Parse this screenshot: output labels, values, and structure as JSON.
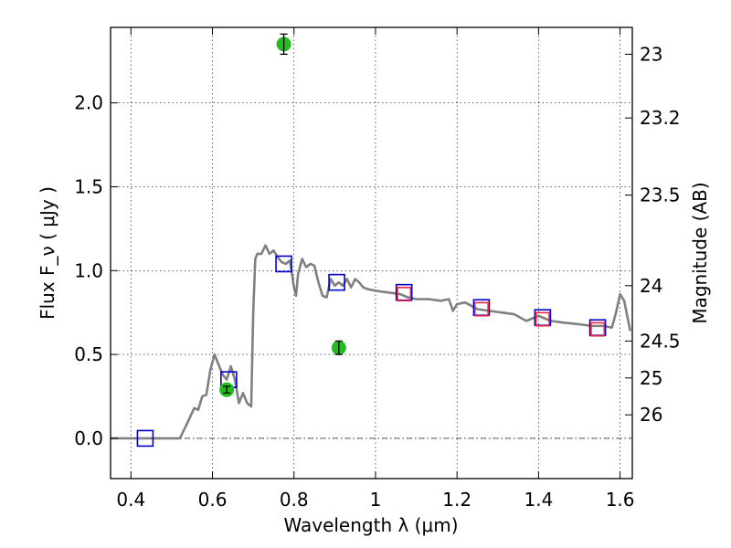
{
  "chart_data": {
    "type": "scatter",
    "title": "",
    "xlabel": "Wavelength  λ (μm)",
    "ylabel": "Flux  F_ν  ( μJy )",
    "y2label": "Magnitude (AB)",
    "xlim": [
      0.35,
      1.63
    ],
    "ylim": [
      -0.24,
      2.45
    ],
    "grid": true,
    "x_ticks": [
      0.4,
      0.6,
      0.8,
      1.0,
      1.2,
      1.4,
      1.6
    ],
    "x_tick_labels": [
      "0.4",
      "0.6",
      "0.8",
      "1",
      "1.2",
      "1.4",
      "1.6"
    ],
    "y_ticks": [
      0.0,
      0.5,
      1.0,
      1.5,
      2.0
    ],
    "y_tick_labels": [
      "0.0",
      "0.5",
      "1.0",
      "1.5",
      "2.0"
    ],
    "y2_ticks": [
      {
        "label": "23",
        "flux": 2.29
      },
      {
        "label": "23.2",
        "flux": 1.91
      },
      {
        "label": "23.5",
        "flux": 1.45
      },
      {
        "label": "24",
        "flux": 0.91
      },
      {
        "label": "24.5",
        "flux": 0.58
      },
      {
        "label": "25",
        "flux": 0.36
      },
      {
        "label": "26",
        "flux": 0.14
      }
    ],
    "series": [
      {
        "kind": "line",
        "color": "#808080",
        "x": [
          0.35,
          0.52,
          0.54,
          0.555,
          0.565,
          0.575,
          0.585,
          0.595,
          0.605,
          0.615,
          0.625,
          0.635,
          0.645,
          0.655,
          0.665,
          0.675,
          0.685,
          0.695,
          0.7,
          0.705,
          0.71,
          0.72,
          0.73,
          0.74,
          0.75,
          0.76,
          0.77,
          0.78,
          0.79,
          0.8,
          0.805,
          0.81,
          0.82,
          0.83,
          0.84,
          0.85,
          0.86,
          0.87,
          0.88,
          0.89,
          0.9,
          0.91,
          0.92,
          0.93,
          0.94,
          0.95,
          0.96,
          0.97,
          0.98,
          1.0,
          1.03,
          1.06,
          1.08,
          1.1,
          1.13,
          1.16,
          1.18,
          1.19,
          1.2,
          1.22,
          1.25,
          1.28,
          1.31,
          1.34,
          1.37,
          1.4,
          1.43,
          1.46,
          1.5,
          1.53,
          1.56,
          1.58,
          1.59,
          1.6,
          1.61,
          1.625
        ],
        "y": [
          0.0,
          0.0,
          0.1,
          0.18,
          0.17,
          0.25,
          0.26,
          0.41,
          0.5,
          0.44,
          0.38,
          0.35,
          0.43,
          0.35,
          0.21,
          0.27,
          0.21,
          0.19,
          0.75,
          1.07,
          1.1,
          1.1,
          1.15,
          1.1,
          1.12,
          1.08,
          1.05,
          1.04,
          1.06,
          0.9,
          0.85,
          0.98,
          1.07,
          1.02,
          1.04,
          1.03,
          0.93,
          0.85,
          0.84,
          0.95,
          0.91,
          0.93,
          0.91,
          0.95,
          0.9,
          0.95,
          0.93,
          0.9,
          0.89,
          0.88,
          0.87,
          0.86,
          0.84,
          0.83,
          0.83,
          0.82,
          0.83,
          0.76,
          0.8,
          0.81,
          0.77,
          0.76,
          0.75,
          0.74,
          0.7,
          0.73,
          0.7,
          0.69,
          0.68,
          0.67,
          0.67,
          0.66,
          0.75,
          0.86,
          0.82,
          0.64
        ]
      },
      {
        "kind": "marker",
        "marker": "open-square",
        "color": "#0000cc",
        "x": [
          0.435,
          0.64,
          0.775,
          0.905,
          1.07,
          1.26,
          1.41,
          1.545
        ],
        "y": [
          0.0,
          0.35,
          1.04,
          0.93,
          0.87,
          0.78,
          0.72,
          0.66
        ]
      },
      {
        "kind": "marker",
        "marker": "open-square",
        "color": "#ee2244",
        "x": [
          1.07,
          1.26,
          1.41,
          1.545
        ],
        "y": [
          0.86,
          0.77,
          0.71,
          0.65
        ]
      },
      {
        "kind": "errorbar",
        "marker": "filled-circle",
        "color": "#22bb22",
        "x": [
          0.635,
          0.775,
          0.91
        ],
        "y": [
          0.29,
          2.35,
          0.54
        ],
        "yerr": [
          0.02,
          0.06,
          0.04
        ]
      }
    ],
    "zero_line": true
  }
}
